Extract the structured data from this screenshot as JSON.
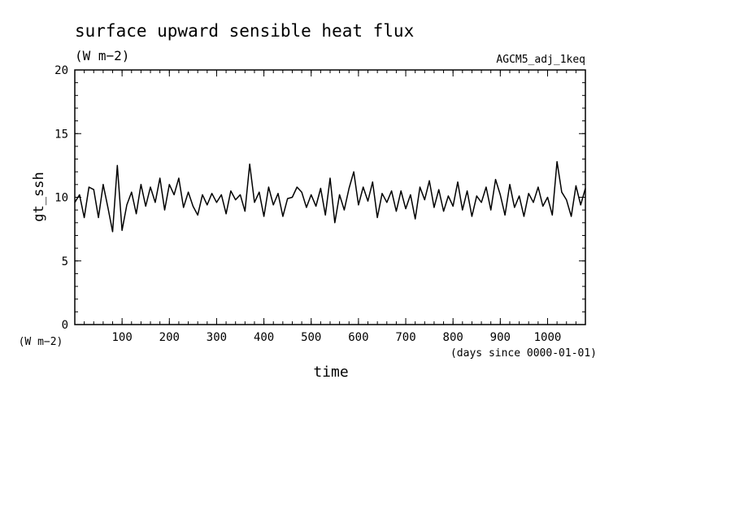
{
  "chart_data": {
    "type": "line",
    "title": "surface upward sensible heat flux",
    "units_label": "(W m−2)",
    "experiment": "AGCM5_adj_1keq",
    "xlabel": "time",
    "x_units": "(days since 0000-01-01)",
    "ylabel": "gt_ssh",
    "y_units": "(W m−2)",
    "xlim": [
      0,
      1080
    ],
    "ylim": [
      0,
      20
    ],
    "x_ticks": [
      100,
      200,
      300,
      400,
      500,
      600,
      700,
      800,
      900,
      1000
    ],
    "y_ticks": [
      0,
      5,
      10,
      15,
      20
    ],
    "x_minor_step": 20,
    "y_minor_step": 1,
    "line_color": "#000000",
    "series": [
      {
        "x": [
          0,
          10,
          20,
          30,
          40,
          50,
          60,
          70,
          80,
          90,
          100,
          110,
          120,
          130,
          140,
          150,
          160,
          170,
          180,
          190,
          200,
          210,
          220,
          230,
          240,
          250,
          260,
          270,
          280,
          290,
          300,
          310,
          320,
          330,
          340,
          350,
          360,
          370,
          380,
          390,
          400,
          410,
          420,
          430,
          440,
          450,
          460,
          470,
          480,
          490,
          500,
          510,
          520,
          530,
          540,
          550,
          560,
          570,
          580,
          590,
          600,
          610,
          620,
          630,
          640,
          650,
          660,
          670,
          680,
          690,
          700,
          710,
          720,
          730,
          740,
          750,
          760,
          770,
          780,
          790,
          800,
          810,
          820,
          830,
          840,
          850,
          860,
          870,
          880,
          890,
          900,
          910,
          920,
          930,
          940,
          950,
          960,
          970,
          980,
          990,
          1000,
          1010,
          1020,
          1030,
          1040,
          1050,
          1060,
          1070,
          1080
        ],
        "values": [
          9.6,
          10.2,
          8.4,
          10.8,
          10.6,
          8.4,
          11.0,
          9.2,
          7.3,
          12.5,
          7.4,
          9.4,
          10.4,
          8.7,
          11.0,
          9.3,
          10.8,
          9.6,
          11.5,
          9.0,
          11.0,
          10.2,
          11.5,
          9.2,
          10.4,
          9.3,
          8.6,
          10.2,
          9.4,
          10.3,
          9.6,
          10.2,
          8.7,
          10.5,
          9.8,
          10.2,
          8.9,
          12.6,
          9.6,
          10.4,
          8.5,
          10.8,
          9.4,
          10.3,
          8.5,
          9.9,
          10.0,
          10.8,
          10.4,
          9.2,
          10.2,
          9.3,
          10.7,
          8.6,
          11.5,
          8.0,
          10.2,
          9.0,
          10.7,
          12.0,
          9.4,
          10.8,
          9.7,
          11.2,
          8.4,
          10.3,
          9.6,
          10.5,
          8.9,
          10.5,
          9.1,
          10.2,
          8.3,
          10.8,
          9.8,
          11.3,
          9.2,
          10.6,
          8.9,
          10.1,
          9.3,
          11.2,
          9.0,
          10.5,
          8.5,
          10.1,
          9.6,
          10.8,
          9.0,
          11.4,
          10.2,
          8.6,
          11.0,
          9.2,
          10.1,
          8.5,
          10.3,
          9.6,
          10.8,
          9.3,
          10.0,
          8.6,
          12.8,
          10.4,
          9.8,
          8.5,
          10.9,
          9.4,
          10.7
        ]
      }
    ]
  }
}
